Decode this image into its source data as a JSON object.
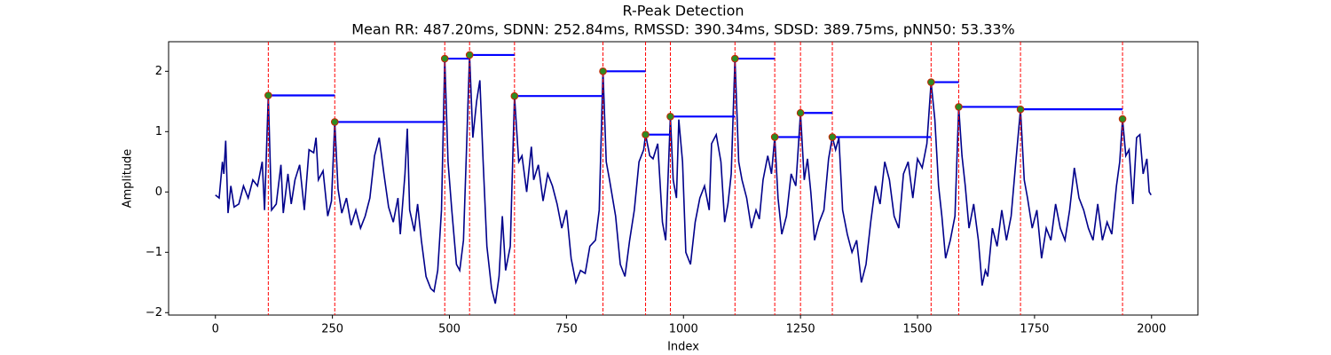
{
  "chart_data": {
    "type": "line",
    "title": "R-Peak Detection",
    "subtitle": "Mean RR: 487.20ms, SDNN: 252.84ms, RMSSD: 390.34ms, SDSD: 389.75ms, pNN50: 53.33%",
    "xlabel": "Index",
    "ylabel": "Amplitude",
    "color": "#00008b",
    "x": [
      0,
      8,
      15,
      18,
      22,
      27,
      33,
      40,
      50,
      60,
      70,
      80,
      90,
      100,
      105,
      113,
      120,
      130,
      140,
      145,
      155,
      162,
      170,
      180,
      190,
      200,
      210,
      215,
      220,
      230,
      240,
      248,
      255,
      262,
      270,
      280,
      290,
      300,
      310,
      320,
      330,
      340,
      350,
      360,
      370,
      380,
      390,
      395,
      405,
      410,
      415,
      425,
      432,
      440,
      450,
      460,
      467,
      475,
      483,
      490,
      497,
      505,
      515,
      522,
      530,
      536,
      543,
      550,
      558,
      565,
      572,
      580,
      590,
      598,
      606,
      613,
      620,
      630,
      639,
      648,
      655,
      665,
      675,
      680,
      690,
      700,
      710,
      720,
      730,
      740,
      750,
      760,
      770,
      780,
      790,
      800,
      812,
      820,
      828,
      835,
      842,
      855,
      865,
      875,
      885,
      895,
      905,
      915,
      919,
      928,
      935,
      945,
      955,
      962,
      972,
      978,
      985,
      990,
      998,
      1005,
      1015,
      1025,
      1035,
      1045,
      1055,
      1060,
      1070,
      1080,
      1088,
      1095,
      1102,
      1110,
      1118,
      1125,
      1135,
      1145,
      1155,
      1162,
      1170,
      1180,
      1188,
      1195,
      1202,
      1210,
      1220,
      1230,
      1240,
      1250,
      1258,
      1265,
      1272,
      1280,
      1290,
      1300,
      1310,
      1318,
      1325,
      1332,
      1340,
      1350,
      1360,
      1370,
      1380,
      1390,
      1400,
      1410,
      1420,
      1430,
      1440,
      1450,
      1460,
      1470,
      1480,
      1490,
      1500,
      1510,
      1520,
      1529,
      1537,
      1545,
      1552,
      1560,
      1570,
      1580,
      1588,
      1595,
      1602,
      1610,
      1620,
      1630,
      1638,
      1645,
      1650,
      1660,
      1670,
      1680,
      1690,
      1700,
      1710,
      1720,
      1728,
      1735,
      1745,
      1755,
      1765,
      1775,
      1785,
      1795,
      1805,
      1815,
      1825,
      1835,
      1845,
      1855,
      1865,
      1875,
      1885,
      1895,
      1905,
      1915,
      1925,
      1932,
      1938,
      1945,
      1952,
      1960,
      1968,
      1975,
      1982,
      1990,
      1995,
      1999
    ],
    "values": [
      -0.05,
      -0.1,
      0.5,
      0.3,
      0.85,
      -0.35,
      0.1,
      -0.25,
      -0.2,
      0.1,
      -0.1,
      0.2,
      0.1,
      0.5,
      -0.3,
      1.6,
      -0.3,
      -0.2,
      0.45,
      -0.35,
      0.3,
      -0.2,
      0.2,
      0.45,
      -0.3,
      0.7,
      0.65,
      0.9,
      0.2,
      0.35,
      -0.4,
      -0.15,
      1.16,
      0.05,
      -0.35,
      -0.1,
      -0.55,
      -0.3,
      -0.6,
      -0.4,
      -0.1,
      0.6,
      0.9,
      0.3,
      -0.25,
      -0.5,
      -0.1,
      -0.7,
      0.3,
      1.05,
      -0.3,
      -0.65,
      -0.2,
      -0.8,
      -1.4,
      -1.6,
      -1.65,
      -1.3,
      -0.3,
      2.21,
      0.5,
      -0.3,
      -1.2,
      -1.3,
      -0.8,
      0.6,
      2.27,
      0.9,
      1.5,
      1.85,
      0.5,
      -0.9,
      -1.6,
      -1.85,
      -1.4,
      -0.4,
      -1.3,
      -0.9,
      1.59,
      0.5,
      0.6,
      0.0,
      0.75,
      0.2,
      0.45,
      -0.15,
      0.3,
      0.1,
      -0.2,
      -0.6,
      -0.3,
      -1.1,
      -1.5,
      -1.3,
      -1.35,
      -0.9,
      -0.8,
      -0.3,
      2.0,
      0.5,
      0.2,
      -0.4,
      -1.2,
      -1.4,
      -0.8,
      -0.3,
      0.5,
      0.7,
      0.95,
      0.6,
      0.55,
      0.8,
      -0.5,
      -0.8,
      1.25,
      0.2,
      -0.1,
      1.2,
      0.5,
      -1.0,
      -1.2,
      -0.5,
      -0.1,
      0.1,
      -0.3,
      0.8,
      0.95,
      0.5,
      -0.5,
      -0.2,
      0.3,
      2.21,
      0.5,
      0.2,
      -0.1,
      -0.6,
      -0.3,
      -0.45,
      0.2,
      0.6,
      0.3,
      0.91,
      -0.1,
      -0.7,
      -0.4,
      0.3,
      0.1,
      1.31,
      0.2,
      0.55,
      0.0,
      -0.8,
      -0.5,
      -0.3,
      0.55,
      0.91,
      0.7,
      0.9,
      -0.3,
      -0.7,
      -1.0,
      -0.8,
      -1.5,
      -1.2,
      -0.5,
      0.1,
      -0.2,
      0.5,
      0.2,
      -0.4,
      -0.6,
      0.3,
      0.5,
      -0.1,
      0.55,
      0.4,
      0.8,
      1.82,
      1.2,
      0.1,
      -0.4,
      -1.1,
      -0.8,
      -0.4,
      1.41,
      0.6,
      0.1,
      -0.6,
      -0.2,
      -0.8,
      -1.55,
      -1.3,
      -1.4,
      -0.6,
      -0.9,
      -0.3,
      -0.8,
      -0.4,
      0.5,
      1.37,
      0.2,
      -0.1,
      -0.6,
      -0.3,
      -1.1,
      -0.6,
      -0.8,
      -0.2,
      -0.6,
      -0.8,
      -0.3,
      0.4,
      -0.1,
      -0.3,
      -0.6,
      -0.8,
      -0.2,
      -0.8,
      -0.5,
      -0.7,
      0.1,
      0.5,
      1.21,
      0.6,
      0.7,
      -0.2,
      0.9,
      0.95,
      0.3,
      0.55,
      0.0,
      -0.05
    ],
    "peaks": {
      "x": [
        113,
        255,
        490,
        543,
        639,
        828,
        919,
        972,
        1110,
        1195,
        1250,
        1318,
        1529,
        1588,
        1720,
        1938
      ],
      "y": [
        1.6,
        1.16,
        2.21,
        2.27,
        1.59,
        2.0,
        0.95,
        1.25,
        2.21,
        0.91,
        1.31,
        0.91,
        1.82,
        1.41,
        1.37,
        1.21
      ],
      "color": "#2e8b22",
      "edgecolor": "#cc2200"
    },
    "peak_line_color": "#ff0000",
    "rr_line_color": "#0000ff",
    "xlim": [
      -100,
      2099
    ],
    "ylim": [
      -2.04,
      2.49
    ],
    "xticks": [
      0,
      250,
      500,
      750,
      1000,
      1250,
      1500,
      1750,
      2000
    ],
    "yticks": [
      {
        "value": -2,
        "label": "−2"
      },
      {
        "value": -1,
        "label": "−1"
      },
      0,
      1,
      2
    ]
  }
}
